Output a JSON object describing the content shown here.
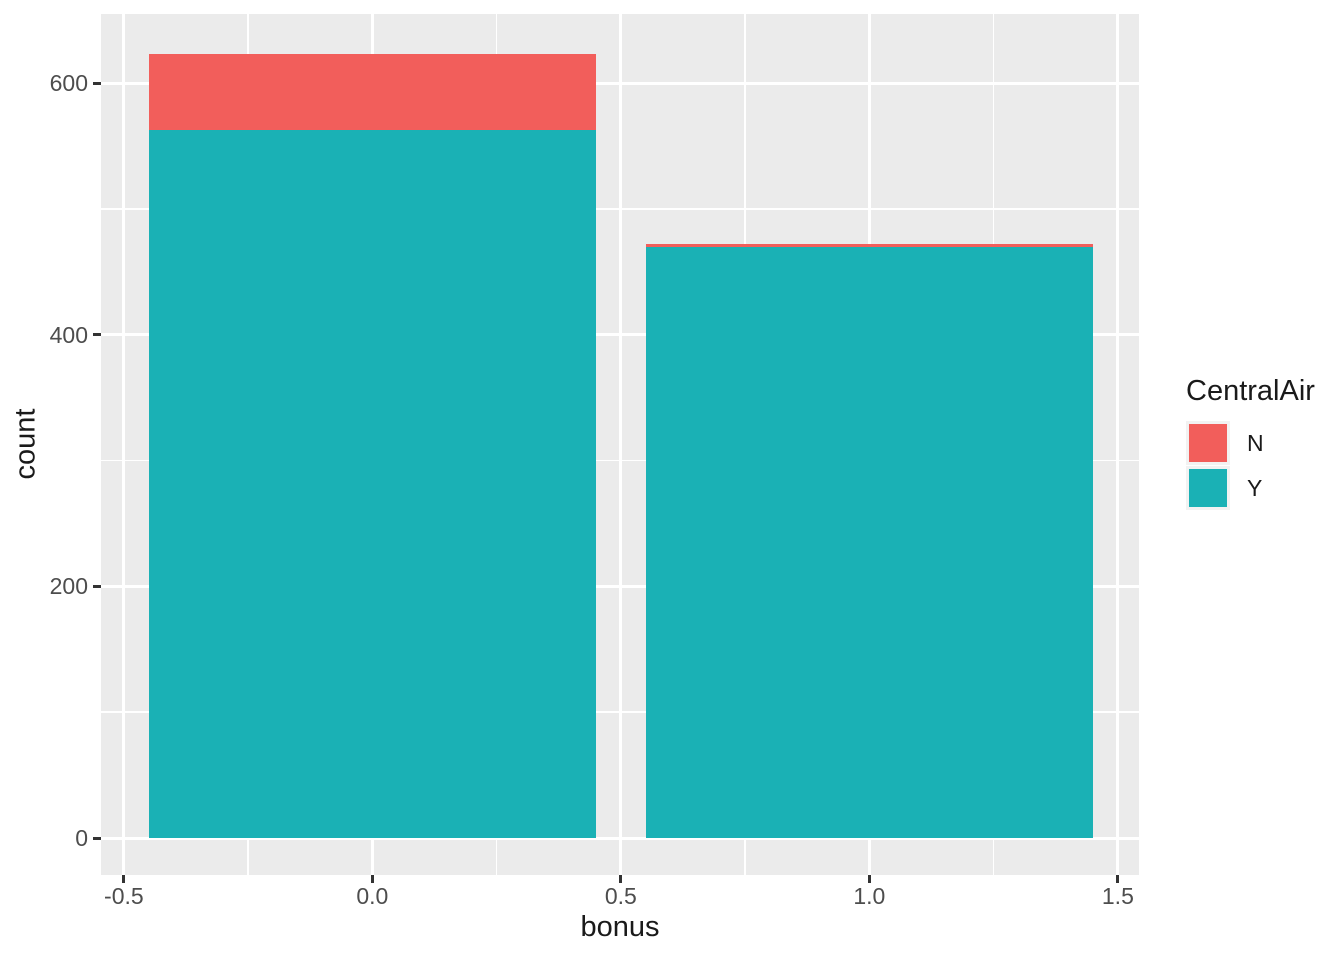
{
  "chart_data": {
    "type": "bar",
    "stacked": true,
    "title": "",
    "xlabel": "bonus",
    "ylabel": "count",
    "x": [
      0,
      1
    ],
    "bar_width": 0.9,
    "series": [
      {
        "name": "N",
        "color": "#F25E5B",
        "values": [
          60,
          2
        ]
      },
      {
        "name": "Y",
        "color": "#1AB1B5",
        "values": [
          563,
          470
        ]
      }
    ],
    "stack_order_bottom_to_top": [
      "Y",
      "N"
    ],
    "totals": [
      623,
      472
    ],
    "x_ticks": {
      "values": [
        -0.5,
        0.0,
        0.5,
        1.0,
        1.5
      ],
      "labels": [
        "-0.5",
        "0.0",
        "0.5",
        "1.0",
        "1.5"
      ]
    },
    "x_minor": [
      -0.25,
      0.25,
      0.75,
      1.25
    ],
    "y_ticks": {
      "values": [
        0,
        200,
        400,
        600
      ],
      "labels": [
        "0",
        "200",
        "400",
        "600"
      ]
    },
    "y_minor": [
      100,
      300,
      500
    ],
    "xlim": [
      -0.546,
      1.5425
    ],
    "ylim": [
      -29.4,
      655
    ],
    "grid": "on",
    "legend": {
      "title": "CentralAir",
      "position": "right"
    },
    "colors": {
      "panel_bg": "#EBEBEB",
      "grid": "#FFFFFF",
      "tick_text": "#4D4D4D",
      "title_text": "#1A1A1A",
      "tick_mark": "#333333",
      "legend_key_bg": "#F2F2F2"
    }
  }
}
